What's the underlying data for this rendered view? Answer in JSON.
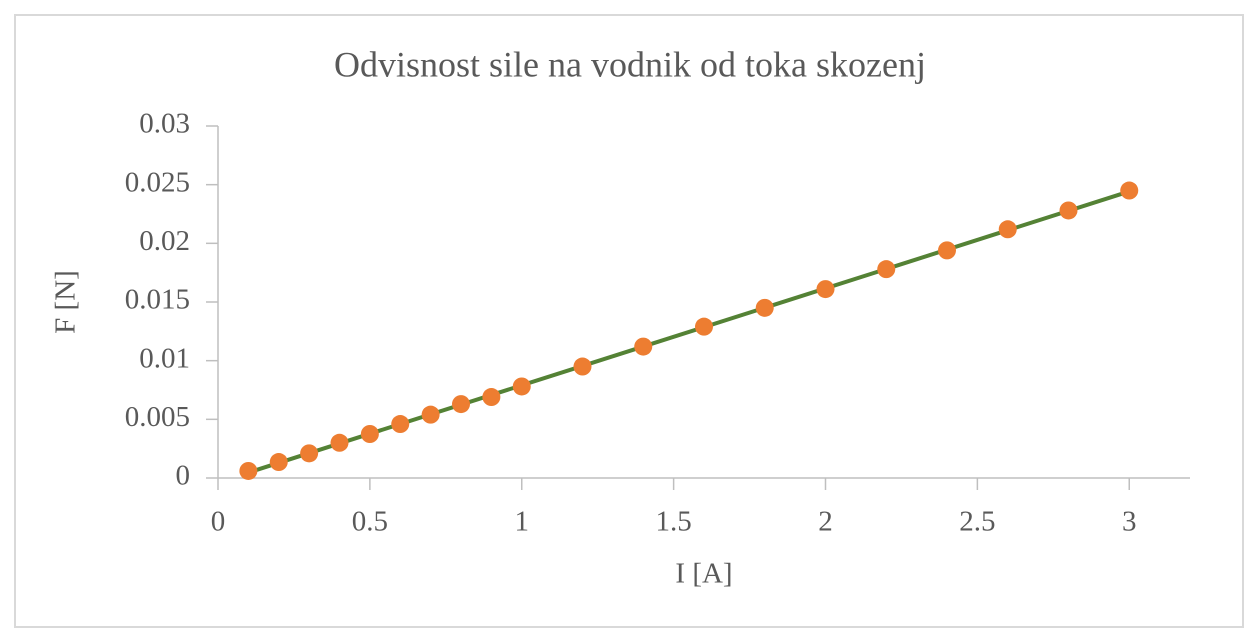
{
  "chart_data": {
    "type": "scatter",
    "title": "Odvisnost sile na vodnik od toka skozenj",
    "x_label": "I [A]",
    "y_label": "F [N]",
    "x": [
      0.1,
      0.2,
      0.3,
      0.4,
      0.5,
      0.6,
      0.7,
      0.8,
      0.9,
      1.0,
      1.2,
      1.4,
      1.6,
      1.8,
      2.0,
      2.2,
      2.4,
      2.6,
      2.8,
      3.0
    ],
    "series": [
      {
        "color": "#ed7d31",
        "values": [
          0.0006,
          0.00136,
          0.0021,
          0.003,
          0.00375,
          0.0046,
          0.0054,
          0.0063,
          0.0069,
          0.0078,
          0.0095,
          0.0112,
          0.0129,
          0.0145,
          0.0161,
          0.0178,
          0.0194,
          0.0212,
          0.0228,
          0.0245
        ]
      }
    ],
    "trendline": {
      "type": "linear",
      "color": "#548235"
    },
    "xlim": [
      0,
      3.2
    ],
    "xticks": [
      0,
      0.5,
      1,
      1.5,
      2,
      2.5,
      3
    ],
    "ylim": [
      0,
      0.03
    ],
    "yticks": [
      0,
      0.005,
      0.01,
      0.015,
      0.02,
      0.025,
      0.03
    ]
  }
}
